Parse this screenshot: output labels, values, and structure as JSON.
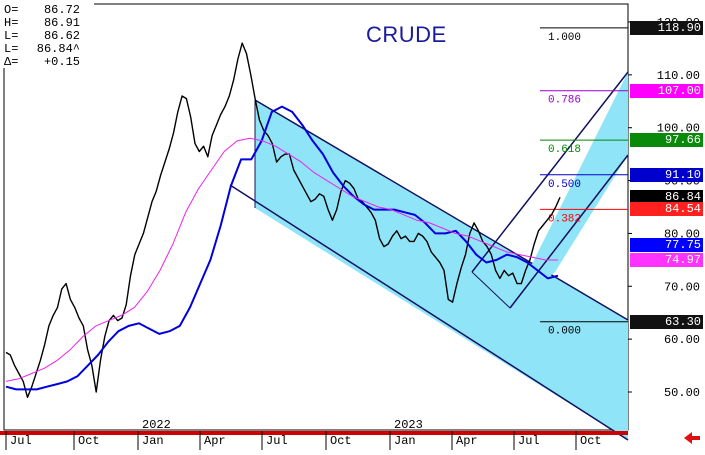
{
  "title": "CRUDE",
  "ohlc": [
    {
      "key": "O=",
      "value": "86.72"
    },
    {
      "key": "H=",
      "value": "86.91"
    },
    {
      "key": "L=",
      "value": "86.62"
    },
    {
      "key": "L=",
      "value": "86.84^"
    },
    {
      "key": "Δ=",
      "value": "+0.15"
    }
  ],
  "price_tags": [
    {
      "label": "118.90",
      "value": 118.9,
      "bg": "#111111",
      "fg": "#ffffff"
    },
    {
      "label": "107.00",
      "value": 107.0,
      "bg": "#ff00ff",
      "fg": "#ffffff"
    },
    {
      "label": "97.66",
      "value": 97.66,
      "bg": "#0a8a0a",
      "fg": "#ffffff"
    },
    {
      "label": "91.10",
      "value": 91.1,
      "bg": "#0000cc",
      "fg": "#ffffff"
    },
    {
      "label": "86.84",
      "value": 86.84,
      "bg": "#000000",
      "fg": "#ffffff"
    },
    {
      "label": "84.54",
      "value": 84.54,
      "bg": "#ff2020",
      "fg": "#ffffff"
    },
    {
      "label": "77.75",
      "value": 77.75,
      "bg": "#0000ff",
      "fg": "#ffffff"
    },
    {
      "label": "74.97",
      "value": 74.97,
      "bg": "#ff33ff",
      "fg": "#ffffff"
    },
    {
      "label": "63.30",
      "value": 63.3,
      "bg": "#111111",
      "fg": "#ffffff"
    }
  ],
  "fib_levels": [
    {
      "label": "1.000",
      "value": 118.9,
      "color": "#000000"
    },
    {
      "label": "0.786",
      "value": 107.0,
      "color": "#9900cc"
    },
    {
      "label": "0.618",
      "value": 97.66,
      "color": "#008800"
    },
    {
      "label": "0.500",
      "value": 91.1,
      "color": "#0000cc"
    },
    {
      "label": "0.382",
      "value": 84.54,
      "color": "#ff0000"
    },
    {
      "label": "0.000",
      "value": 63.3,
      "color": "#000000"
    }
  ],
  "colors": {
    "channel_fill": "#90e4f8",
    "channel_line": "#101060",
    "price": "#000000",
    "ma_fast": "#0000dd",
    "ma_slow": "#ee22ee",
    "axis_red": "#cc0000",
    "up_green": "#22cc22",
    "down_red": "#cc2222"
  },
  "chart_data": {
    "type": "line",
    "title": "CRUDE",
    "ylim": [
      42,
      122
    ],
    "y_ticks": [
      50,
      60,
      70,
      80,
      90,
      100,
      110,
      120
    ],
    "y_tick_labels": [
      "50.00",
      "60.00",
      "70.00",
      "80.00",
      "90.00",
      "100.00",
      "110.00",
      "120.00"
    ],
    "x_ticks": [
      "Jul",
      "Oct",
      "Jan",
      "Apr",
      "Jul",
      "Oct",
      "Jan",
      "Apr",
      "Jul",
      "Oct"
    ],
    "x_year_labels": [
      "2022",
      "2023"
    ],
    "grid": false,
    "series": [
      {
        "type": "price",
        "values": [
          57.5,
          57.0,
          55.0,
          53.5,
          52.0,
          49.0,
          51.0,
          53.5,
          56.0,
          59.0,
          62.5,
          64.5,
          66.0,
          69.5,
          70.5,
          67.5,
          66.0,
          64.0,
          62.5,
          58.0,
          55.0,
          50.0,
          56.0,
          60.5,
          63.5,
          64.5,
          63.5,
          64.0,
          66.5,
          72.0,
          76.0,
          78.0,
          80.0,
          83.0,
          86.0,
          88.0,
          91.0,
          93.5,
          96.0,
          99.0,
          103.0,
          106.0,
          105.5,
          102.0,
          97.0,
          95.5,
          96.5,
          94.5,
          98.5,
          100.5,
          102.5,
          104.0,
          106.0,
          109.0,
          113.0,
          116.0,
          114.0,
          110.0,
          105.5,
          101.5,
          99.5,
          98.5,
          97.0,
          93.5,
          94.5,
          95.0,
          95.0,
          92.0,
          90.5,
          89.0,
          87.5,
          86.0,
          86.5,
          87.5,
          87.0,
          84.5,
          82.5,
          84.5,
          88.0,
          90.0,
          89.5,
          88.5,
          86.5,
          86.0,
          85.0,
          84.0,
          82.5,
          79.0,
          77.5,
          78.0,
          79.5,
          80.5,
          79.0,
          79.5,
          78.5,
          78.5,
          80.0,
          79.5,
          78.5,
          76.5,
          75.5,
          74.5,
          73.0,
          67.5,
          67.0,
          70.5,
          73.5,
          76.0,
          80.0,
          82.0,
          80.5,
          78.5,
          77.5,
          76.0,
          73.0,
          71.5,
          73.0,
          72.0,
          72.5,
          70.5,
          70.5,
          73.0,
          75.0,
          78.0,
          80.5,
          81.5,
          82.5,
          83.5,
          85.0,
          86.84
        ]
      },
      {
        "type": "moving_average_fast",
        "values": [
          51.0,
          50.5,
          50.5,
          50.5,
          51.0,
          51.5,
          52.0,
          53.0,
          55.0,
          57.0,
          59.5,
          61.5,
          62.5,
          63.0,
          62.0,
          61.0,
          61.5,
          62.5,
          66.0,
          70.5,
          75.0,
          81.5,
          89.0,
          94.0,
          94.0,
          97.5,
          103.0,
          104.0,
          103.0,
          100.5,
          97.5,
          95.0,
          91.5,
          89.0,
          87.0,
          85.5,
          84.5,
          84.5,
          84.5,
          84.0,
          83.5,
          82.0,
          80.0,
          80.0,
          80.5,
          78.5,
          76.0,
          74.5,
          75.0,
          76.0,
          75.5,
          74.5,
          73.0,
          71.5,
          72.0
        ]
      },
      {
        "type": "moving_average_slow",
        "values": [
          52.0,
          52.5,
          53.5,
          54.5,
          56.0,
          58.0,
          60.5,
          62.5,
          63.5,
          64.5,
          66.0,
          69.0,
          73.0,
          78.0,
          84.0,
          88.5,
          92.0,
          95.5,
          97.5,
          98.0,
          97.5,
          96.5,
          95.0,
          93.5,
          91.5,
          90.0,
          88.5,
          87.0,
          86.0,
          85.0,
          84.5,
          83.5,
          82.5,
          82.0,
          81.0,
          80.0,
          79.5,
          78.5,
          77.5,
          76.5,
          76.0,
          75.5,
          75.0,
          74.97
        ]
      }
    ]
  },
  "footer": {
    "back_arrow": "back-arrow-icon"
  }
}
